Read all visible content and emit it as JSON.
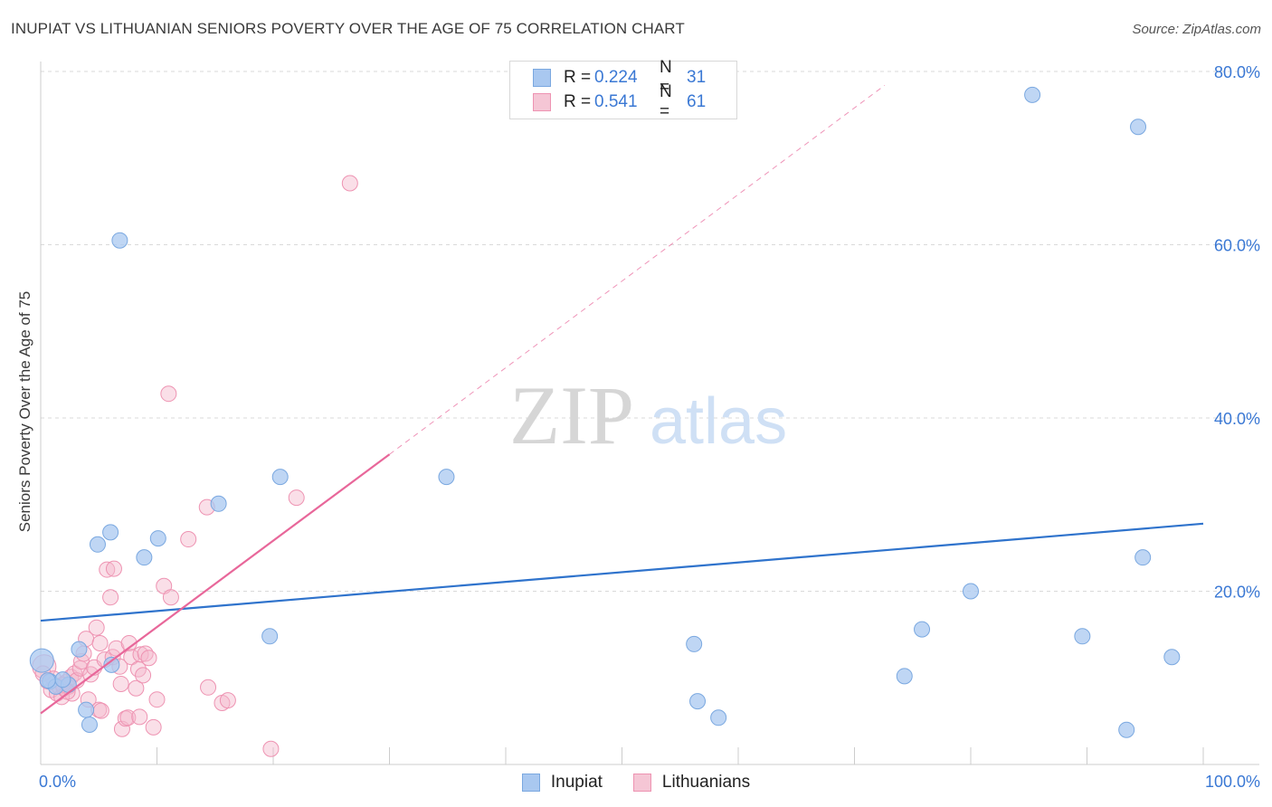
{
  "title": "INUPIAT VS LITHUANIAN SENIORS POVERTY OVER THE AGE OF 75 CORRELATION CHART",
  "source": "Source: ZipAtlas.com",
  "watermark": {
    "zip": "ZIP",
    "atlas": "atlas"
  },
  "legend_top": {
    "rows": [
      {
        "r_label": "R =",
        "r_value": "0.224",
        "n_label": "N =",
        "n_value": "31"
      },
      {
        "r_label": "R =",
        "r_value": "0.541",
        "n_label": "N =",
        "n_value": "61"
      }
    ]
  },
  "legend_bottom": [
    "Inupiat",
    "Lithuanians"
  ],
  "colors": {
    "inupiat_fill": "#a9c8f0",
    "inupiat_stroke": "#7aa8e0",
    "inupiat_line": "#2f73cc",
    "lith_fill": "#f5b8cb",
    "lith_stroke": "#ee93b2",
    "lith_line": "#e8679a",
    "tick_text": "#3a78d4",
    "grid": "#d9d9d9"
  },
  "chart_data": {
    "type": "scatter",
    "title": "INUPIAT VS LITHUANIAN SENIORS POVERTY OVER THE AGE OF 75 CORRELATION CHART",
    "xlabel": "",
    "ylabel": "Seniors Poverty Over the Age of 75",
    "xlim": [
      0,
      100
    ],
    "ylim": [
      0,
      80
    ],
    "x_tick_labels": [
      "0.0%",
      "100.0%"
    ],
    "y_tick_labels": [
      "20.0%",
      "40.0%",
      "60.0%",
      "80.0%"
    ],
    "y_tick_values": [
      20,
      40,
      60,
      80
    ],
    "grid": true,
    "legend_position": "top-center",
    "series": [
      {
        "name": "Inupiat",
        "r": 0.224,
        "n": 31,
        "trend": {
          "x": [
            0,
            100
          ],
          "y": [
            16.6,
            27.8
          ]
        },
        "points": [
          {
            "x": 0.1,
            "y": 12.0
          },
          {
            "x": 0.8,
            "y": 9.6
          },
          {
            "x": 1.3,
            "y": 9.0
          },
          {
            "x": 2.4,
            "y": 9.2
          },
          {
            "x": 3.3,
            "y": 13.3
          },
          {
            "x": 3.9,
            "y": 6.3
          },
          {
            "x": 4.2,
            "y": 4.6
          },
          {
            "x": 4.9,
            "y": 25.4
          },
          {
            "x": 6.0,
            "y": 26.8
          },
          {
            "x": 6.1,
            "y": 11.5
          },
          {
            "x": 6.8,
            "y": 60.5
          },
          {
            "x": 8.9,
            "y": 23.9
          },
          {
            "x": 10.1,
            "y": 26.1
          },
          {
            "x": 15.3,
            "y": 30.1
          },
          {
            "x": 19.7,
            "y": 14.8
          },
          {
            "x": 20.6,
            "y": 33.2
          },
          {
            "x": 34.9,
            "y": 33.2
          },
          {
            "x": 56.2,
            "y": 13.9
          },
          {
            "x": 56.5,
            "y": 7.3
          },
          {
            "x": 58.3,
            "y": 5.4
          },
          {
            "x": 74.3,
            "y": 10.2
          },
          {
            "x": 75.8,
            "y": 15.6
          },
          {
            "x": 80.0,
            "y": 20.0
          },
          {
            "x": 85.3,
            "y": 77.3
          },
          {
            "x": 89.6,
            "y": 14.8
          },
          {
            "x": 93.4,
            "y": 4.0
          },
          {
            "x": 94.4,
            "y": 73.6
          },
          {
            "x": 94.8,
            "y": 23.9
          },
          {
            "x": 97.3,
            "y": 12.4
          },
          {
            "x": 1.9,
            "y": 9.8
          },
          {
            "x": 0.6,
            "y": 9.7
          }
        ]
      },
      {
        "name": "Lithuanians",
        "r": 0.541,
        "n": 61,
        "trend": {
          "x": [
            0,
            30
          ],
          "y": [
            5.9,
            35.8
          ],
          "dashed_to": {
            "x": 72.6,
            "y": 78.4
          }
        },
        "points": [
          {
            "x": 0.3,
            "y": 11.3
          },
          {
            "x": 0.6,
            "y": 9.6
          },
          {
            "x": 0.9,
            "y": 8.6
          },
          {
            "x": 1.1,
            "y": 9.9
          },
          {
            "x": 1.4,
            "y": 8.2
          },
          {
            "x": 1.6,
            "y": 9.0
          },
          {
            "x": 1.8,
            "y": 7.8
          },
          {
            "x": 2.0,
            "y": 8.8
          },
          {
            "x": 2.2,
            "y": 9.5
          },
          {
            "x": 2.4,
            "y": 9.0
          },
          {
            "x": 2.6,
            "y": 10.1
          },
          {
            "x": 2.7,
            "y": 8.2
          },
          {
            "x": 2.9,
            "y": 10.5
          },
          {
            "x": 3.1,
            "y": 9.7
          },
          {
            "x": 3.4,
            "y": 11.1
          },
          {
            "x": 3.5,
            "y": 11.9
          },
          {
            "x": 3.7,
            "y": 12.8
          },
          {
            "x": 3.9,
            "y": 14.5
          },
          {
            "x": 4.1,
            "y": 7.5
          },
          {
            "x": 4.3,
            "y": 10.4
          },
          {
            "x": 4.6,
            "y": 11.2
          },
          {
            "x": 4.8,
            "y": 15.8
          },
          {
            "x": 5.0,
            "y": 6.3
          },
          {
            "x": 5.2,
            "y": 6.2
          },
          {
            "x": 5.5,
            "y": 12.1
          },
          {
            "x": 5.7,
            "y": 22.5
          },
          {
            "x": 6.0,
            "y": 19.3
          },
          {
            "x": 6.2,
            "y": 12.4
          },
          {
            "x": 6.5,
            "y": 13.4
          },
          {
            "x": 6.8,
            "y": 11.3
          },
          {
            "x": 6.9,
            "y": 9.3
          },
          {
            "x": 7.0,
            "y": 4.1
          },
          {
            "x": 7.3,
            "y": 5.3
          },
          {
            "x": 7.5,
            "y": 5.4
          },
          {
            "x": 7.6,
            "y": 14.0
          },
          {
            "x": 7.8,
            "y": 12.4
          },
          {
            "x": 8.2,
            "y": 8.8
          },
          {
            "x": 8.4,
            "y": 11.0
          },
          {
            "x": 8.5,
            "y": 5.5
          },
          {
            "x": 8.6,
            "y": 12.7
          },
          {
            "x": 8.8,
            "y": 10.3
          },
          {
            "x": 9.0,
            "y": 12.8
          },
          {
            "x": 9.3,
            "y": 12.3
          },
          {
            "x": 9.7,
            "y": 4.3
          },
          {
            "x": 10.0,
            "y": 7.5
          },
          {
            "x": 10.6,
            "y": 20.6
          },
          {
            "x": 11.0,
            "y": 42.8
          },
          {
            "x": 11.2,
            "y": 19.3
          },
          {
            "x": 12.7,
            "y": 26.0
          },
          {
            "x": 14.3,
            "y": 29.7
          },
          {
            "x": 14.4,
            "y": 8.9
          },
          {
            "x": 15.6,
            "y": 7.1
          },
          {
            "x": 16.1,
            "y": 7.4
          },
          {
            "x": 19.8,
            "y": 1.8
          },
          {
            "x": 22.0,
            "y": 30.8
          },
          {
            "x": 26.6,
            "y": 67.1
          },
          {
            "x": 6.3,
            "y": 22.6
          },
          {
            "x": 5.1,
            "y": 14.0
          },
          {
            "x": 1.9,
            "y": 9.2
          },
          {
            "x": 2.3,
            "y": 8.4
          },
          {
            "x": 0.2,
            "y": 10.5
          }
        ]
      }
    ]
  }
}
